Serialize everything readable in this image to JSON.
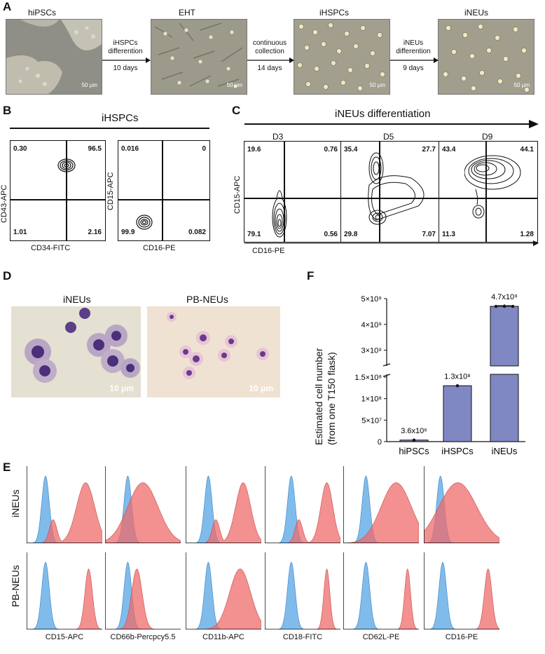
{
  "panel_labels": {
    "a": "A",
    "b": "B",
    "c": "C",
    "d": "D",
    "e": "E",
    "f": "F"
  },
  "panel_a": {
    "stages": [
      "hiPSCs",
      "EHT",
      "iHSPCs",
      "iNEUs"
    ],
    "arrow1": [
      "iHSPCs",
      "differention",
      "10 days"
    ],
    "arrow2": [
      "continuous",
      "collection",
      "14 days"
    ],
    "arrow3": [
      "iNEUs",
      "differention",
      "9 days"
    ],
    "scale_bar": "50 μm"
  },
  "panel_b": {
    "title": "iHSPCs",
    "plot1": {
      "ylabel": "CD43-APC",
      "xlabel": "CD34-FITC",
      "q_ul": "0.30",
      "q_ur": "96.5",
      "q_ll": "1.01",
      "q_lr": "2.16"
    },
    "plot2": {
      "ylabel": "CD15-APC",
      "xlabel": "CD16-PE",
      "q_ul": "0.016",
      "q_ur": "0",
      "q_ll": "99.9",
      "q_lr": "0.082"
    }
  },
  "panel_c": {
    "title": "iNEUs differentiation",
    "ylabel": "CD15-APC",
    "xlabel": "CD16-PE",
    "days": [
      {
        "day": "D3",
        "q_ul": "19.6",
        "q_ur": "0.76",
        "q_ll": "79.1",
        "q_lr": "0.56"
      },
      {
        "day": "D5",
        "q_ul": "35.4",
        "q_ur": "27.7",
        "q_ll": "29.8",
        "q_lr": "7.07"
      },
      {
        "day": "D9",
        "q_ul": "43.4",
        "q_ur": "44.1",
        "q_ll": "11.3",
        "q_lr": "1.28"
      }
    ]
  },
  "panel_d": {
    "img1": "iNEUs",
    "img2": "PB-NEUs",
    "scale": "10 μm"
  },
  "panel_f": {
    "ylabel_line1": "Estimated cell number",
    "ylabel_line2": "(from one T150 flask)",
    "yticks_top": [
      "5×10⁹",
      "4×10⁹",
      "3×10⁹"
    ],
    "yticks_bottom": [
      "1.5×10⁸",
      "1×10⁸",
      "5×10⁷",
      "0"
    ],
    "bar_color": "#8088c4"
  },
  "chart_data": {
    "type": "bar",
    "title": "",
    "xlabel": "",
    "ylabel": "Estimated cell number (from one T150 flask)",
    "categories": [
      "hiPSCs",
      "iHSPCs",
      "iNEUs"
    ],
    "values": [
      3600000,
      130000000,
      4700000000
    ],
    "value_labels": [
      "3.6x10⁶",
      "1.3x10⁸",
      "4.7x10⁹"
    ],
    "axis_break": true,
    "ylim_bottom": [
      0,
      150000000
    ],
    "ylim_top": [
      2500000000,
      5000000000
    ]
  },
  "panel_e": {
    "row_labels": [
      "iNEUs",
      "PB-NEUs"
    ],
    "markers": [
      "CD15-APC",
      "CD66b-Percpcy5.5",
      "CD11b-APC",
      "CD18-FITC",
      "CD62L-PE",
      "CD16-PE"
    ],
    "iso_color": "#6ab0e8",
    "stain_color": "#ef6b6b"
  }
}
